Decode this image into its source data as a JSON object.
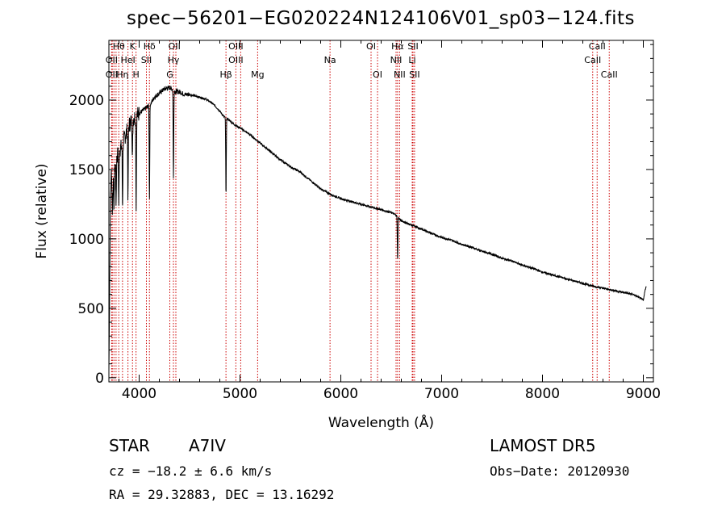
{
  "chart_data": {
    "type": "line",
    "title": "spec−56201−EG020224N124106V01_sp03−124.fits",
    "xlabel": "Wavelength (Å)",
    "ylabel": "Flux (relative)",
    "xlim": [
      3700,
      9100
    ],
    "ylim": [
      -30,
      2430
    ],
    "xticks": [
      4000,
      5000,
      6000,
      7000,
      8000,
      9000
    ],
    "yticks": [
      0,
      500,
      1000,
      1500,
      2000
    ],
    "grid": false,
    "series": [
      {
        "x": [
          3700,
          3715,
          3725,
          3735,
          3760,
          3790,
          3820,
          3850,
          3880,
          3900,
          3930,
          3960,
          3990,
          4030,
          4080,
          4120,
          4150,
          4200,
          4250,
          4300,
          4330,
          4360,
          4400,
          4450,
          4500,
          4550,
          4600,
          4650,
          4700,
          4750,
          4800,
          4840,
          4870,
          4900,
          4950,
          5000,
          5100,
          5200,
          5300,
          5400,
          5500,
          5600,
          5700,
          5800,
          5900,
          6000,
          6100,
          6200,
          6300,
          6400,
          6500,
          6550,
          6600,
          6700,
          6800,
          6900,
          7000,
          7100,
          7200,
          7300,
          7400,
          7500,
          7600,
          7700,
          7800,
          7900,
          8000,
          8100,
          8200,
          8300,
          8400,
          8500,
          8600,
          8700,
          8800,
          8900,
          8950,
          9000,
          9020,
          9030
        ],
        "y": [
          50,
          1300,
          1500,
          1350,
          1520,
          1620,
          1660,
          1720,
          1780,
          1820,
          1860,
          1880,
          1900,
          1920,
          1950,
          1980,
          2020,
          2050,
          2080,
          2090,
          2080,
          2060,
          2060,
          2040,
          2040,
          2030,
          2020,
          2010,
          1990,
          1960,
          1920,
          1880,
          1870,
          1850,
          1820,
          1800,
          1750,
          1690,
          1630,
          1570,
          1520,
          1480,
          1420,
          1360,
          1320,
          1290,
          1270,
          1250,
          1230,
          1210,
          1190,
          1170,
          1130,
          1100,
          1070,
          1040,
          1010,
          990,
          960,
          940,
          910,
          890,
          860,
          840,
          810,
          790,
          760,
          740,
          720,
          700,
          680,
          660,
          645,
          630,
          615,
          600,
          580,
          560,
          640,
          660
        ]
      }
    ],
    "absorption": [
      {
        "x": 3734,
        "depth": 150
      },
      {
        "x": 3750,
        "depth": 230
      },
      {
        "x": 3771,
        "depth": 300
      },
      {
        "x": 3798,
        "depth": 380
      },
      {
        "x": 3835,
        "depth": 450
      },
      {
        "x": 3889,
        "depth": 500
      },
      {
        "x": 3933,
        "depth": 280
      },
      {
        "x": 3970,
        "depth": 640
      },
      {
        "x": 4102,
        "depth": 680
      },
      {
        "x": 4340,
        "depth": 640
      },
      {
        "x": 4861,
        "depth": 560
      },
      {
        "x": 6563,
        "depth": 310
      }
    ],
    "lines": [
      {
        "label": "Hθ",
        "x": 3798,
        "row": 0
      },
      {
        "label": "K",
        "x": 3934,
        "row": 0
      },
      {
        "label": "Hδ",
        "x": 4102,
        "row": 0
      },
      {
        "label": "OII",
        "x": 4350,
        "row": 0
      },
      {
        "label": "OIII",
        "x": 4959,
        "row": 0
      },
      {
        "label": "OI",
        "x": 6300,
        "row": 0
      },
      {
        "label": "Hα",
        "x": 6563,
        "row": 0
      },
      {
        "label": "SII",
        "x": 6716,
        "row": 0
      },
      {
        "label": "CaII",
        "x": 8542,
        "row": 0
      },
      {
        "label": "OII",
        "x": 3727,
        "row": 1
      },
      {
        "label": "HeI",
        "x": 3889,
        "row": 1
      },
      {
        "label": "SII",
        "x": 4072,
        "row": 1
      },
      {
        "label": "Hγ",
        "x": 4340,
        "row": 1
      },
      {
        "label": "OIII",
        "x": 4959,
        "row": 1
      },
      {
        "label": "Na",
        "x": 5893,
        "row": 1
      },
      {
        "label": "NII",
        "x": 6548,
        "row": 1
      },
      {
        "label": "Li",
        "x": 6708,
        "row": 1
      },
      {
        "label": "CaII",
        "x": 8498,
        "row": 1
      },
      {
        "label": "OII",
        "x": 3727,
        "row": 2
      },
      {
        "label": "Hη",
        "x": 3835,
        "row": 2
      },
      {
        "label": "H",
        "x": 3969,
        "row": 2
      },
      {
        "label": "G",
        "x": 4304,
        "row": 2
      },
      {
        "label": "Hβ",
        "x": 4861,
        "row": 2
      },
      {
        "label": "Mg",
        "x": 5175,
        "row": 2
      },
      {
        "label": "OI",
        "x": 6364,
        "row": 2
      },
      {
        "label": "NII",
        "x": 6583,
        "row": 2
      },
      {
        "label": "SII",
        "x": 6731,
        "row": 2
      },
      {
        "label": "CaII",
        "x": 8662,
        "row": 2
      }
    ],
    "line_positions": [
      3727,
      3734,
      3750,
      3771,
      3798,
      3835,
      3889,
      3934,
      3969,
      4072,
      4102,
      4304,
      4340,
      4364,
      4861,
      4959,
      5007,
      5175,
      5893,
      6300,
      6364,
      6548,
      6563,
      6583,
      6708,
      6716,
      6731,
      8498,
      8542,
      8662
    ],
    "colors": {
      "spectrum": "#000000",
      "marker": "#cc0000",
      "axes": "#000000"
    }
  },
  "info": {
    "object_class": "STAR",
    "subclass": "A7IV",
    "survey": "LAMOST DR5",
    "cz": "cz = −18.2 ± 6.6 km/s",
    "obs_date": "Obs−Date: 20120930",
    "coords": "RA =  29.32883, DEC =  13.16292"
  }
}
